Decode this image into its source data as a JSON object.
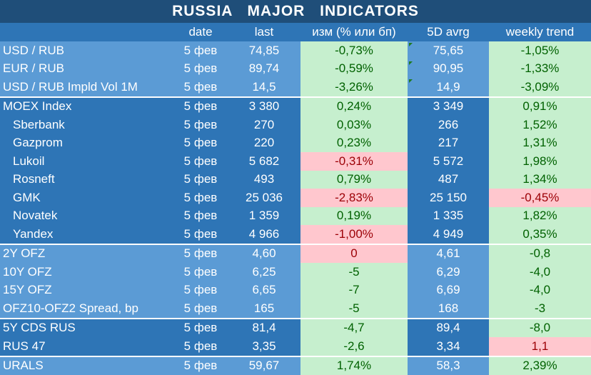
{
  "title": "RUSSIA   MAJOR   INDICATORS",
  "columns": [
    "",
    "date",
    "last",
    "изм (% или бп)",
    "5D avrg",
    "weekly trend"
  ],
  "rows": [
    {
      "name": "USD / RUB",
      "date": "5 фев",
      "last": "74,85",
      "chg": "-0,73%",
      "avg": "75,65",
      "trend": "-1,05%",
      "group": "g1",
      "sub": false,
      "sep": false,
      "chg_neg": false,
      "trend_neg": false,
      "marker": true
    },
    {
      "name": "EUR / RUB",
      "date": "5 фев",
      "last": "89,74",
      "chg": "-0,59%",
      "avg": "90,95",
      "trend": "-1,33%",
      "group": "g1",
      "sub": false,
      "sep": false,
      "chg_neg": false,
      "trend_neg": false,
      "marker": true
    },
    {
      "name": "USD / RUB Impld Vol 1M",
      "date": "5 фев",
      "last": "14,5",
      "chg": "-3,26%",
      "avg": "14,9",
      "trend": "-3,09%",
      "group": "g1",
      "sub": false,
      "sep": false,
      "chg_neg": false,
      "trend_neg": false,
      "marker": true
    },
    {
      "name": "MOEX Index",
      "date": "5 фев",
      "last": "3 380",
      "chg": "0,24%",
      "avg": "3 349",
      "trend": "0,91%",
      "group": "g2",
      "sub": false,
      "sep": true,
      "chg_neg": false,
      "trend_neg": false,
      "marker": false
    },
    {
      "name": "Sberbank",
      "date": "5 фев",
      "last": "270",
      "chg": "0,03%",
      "avg": "266",
      "trend": "1,52%",
      "group": "g2",
      "sub": true,
      "sep": false,
      "chg_neg": false,
      "trend_neg": false,
      "marker": false
    },
    {
      "name": "Gazprom",
      "date": "5 фев",
      "last": "220",
      "chg": "0,23%",
      "avg": "217",
      "trend": "1,31%",
      "group": "g2",
      "sub": true,
      "sep": false,
      "chg_neg": false,
      "trend_neg": false,
      "marker": false
    },
    {
      "name": "Lukoil",
      "date": "5 фев",
      "last": "5 682",
      "chg": "-0,31%",
      "avg": "5 572",
      "trend": "1,98%",
      "group": "g2",
      "sub": true,
      "sep": false,
      "chg_neg": true,
      "trend_neg": false,
      "marker": false
    },
    {
      "name": "Rosneft",
      "date": "5 фев",
      "last": "493",
      "chg": "0,79%",
      "avg": "487",
      "trend": "1,34%",
      "group": "g2",
      "sub": true,
      "sep": false,
      "chg_neg": false,
      "trend_neg": false,
      "marker": false
    },
    {
      "name": "GMK",
      "date": "5 фев",
      "last": "25 036",
      "chg": "-2,83%",
      "avg": "25 150",
      "trend": "-0,45%",
      "group": "g2",
      "sub": true,
      "sep": false,
      "chg_neg": true,
      "trend_neg": true,
      "marker": false
    },
    {
      "name": "Novatek",
      "date": "5 фев",
      "last": "1 359",
      "chg": "0,19%",
      "avg": "1 335",
      "trend": "1,82%",
      "group": "g2",
      "sub": true,
      "sep": false,
      "chg_neg": false,
      "trend_neg": false,
      "marker": false
    },
    {
      "name": "Yandex",
      "date": "5 фев",
      "last": "4 966",
      "chg": "-1,00%",
      "avg": "4 949",
      "trend": "0,35%",
      "group": "g2",
      "sub": true,
      "sep": false,
      "chg_neg": true,
      "trend_neg": false,
      "marker": false
    },
    {
      "name": "2Y OFZ",
      "date": "5 фев",
      "last": "4,60",
      "chg": "0",
      "avg": "4,61",
      "trend": "-0,8",
      "group": "g1",
      "sub": false,
      "sep": true,
      "chg_neg": true,
      "trend_neg": false,
      "marker": false
    },
    {
      "name": "10Y OFZ",
      "date": "5 фев",
      "last": "6,25",
      "chg": "-5",
      "avg": "6,29",
      "trend": "-4,0",
      "group": "g1",
      "sub": false,
      "sep": false,
      "chg_neg": false,
      "trend_neg": false,
      "marker": false
    },
    {
      "name": "15Y OFZ",
      "date": "5 фев",
      "last": "6,65",
      "chg": "-7",
      "avg": "6,69",
      "trend": "-4,0",
      "group": "g1",
      "sub": false,
      "sep": false,
      "chg_neg": false,
      "trend_neg": false,
      "marker": false
    },
    {
      "name": "OFZ10-OFZ2 Spread, bp",
      "date": "5 фев",
      "last": "165",
      "chg": "-5",
      "avg": "168",
      "trend": "-3",
      "group": "g1",
      "sub": false,
      "sep": false,
      "chg_neg": false,
      "trend_neg": false,
      "marker": false
    },
    {
      "name": "5Y CDS RUS",
      "date": "5 фев",
      "last": "81,4",
      "chg": "-4,7",
      "avg": "89,4",
      "trend": "-8,0",
      "group": "g2",
      "sub": false,
      "sep": true,
      "chg_neg": false,
      "trend_neg": false,
      "marker": false
    },
    {
      "name": "RUS 47",
      "date": "5 фев",
      "last": "3,35",
      "chg": "-2,6",
      "avg": "3,34",
      "trend": "1,1",
      "group": "g2",
      "sub": false,
      "sep": false,
      "chg_neg": false,
      "trend_neg": true,
      "marker": false
    },
    {
      "name": "URALS",
      "date": "5 фев",
      "last": "59,67",
      "chg": "1,74%",
      "avg": "58,3",
      "trend": "2,39%",
      "group": "g1",
      "sub": false,
      "sep": true,
      "chg_neg": false,
      "trend_neg": false,
      "marker": false
    }
  ],
  "colors": {
    "header": "#1f4e79",
    "light_blue": "#5b9bd5",
    "dark_blue": "#2e75b6",
    "positive_bg": "#c6efce",
    "negative_bg": "#ffc7ce"
  }
}
